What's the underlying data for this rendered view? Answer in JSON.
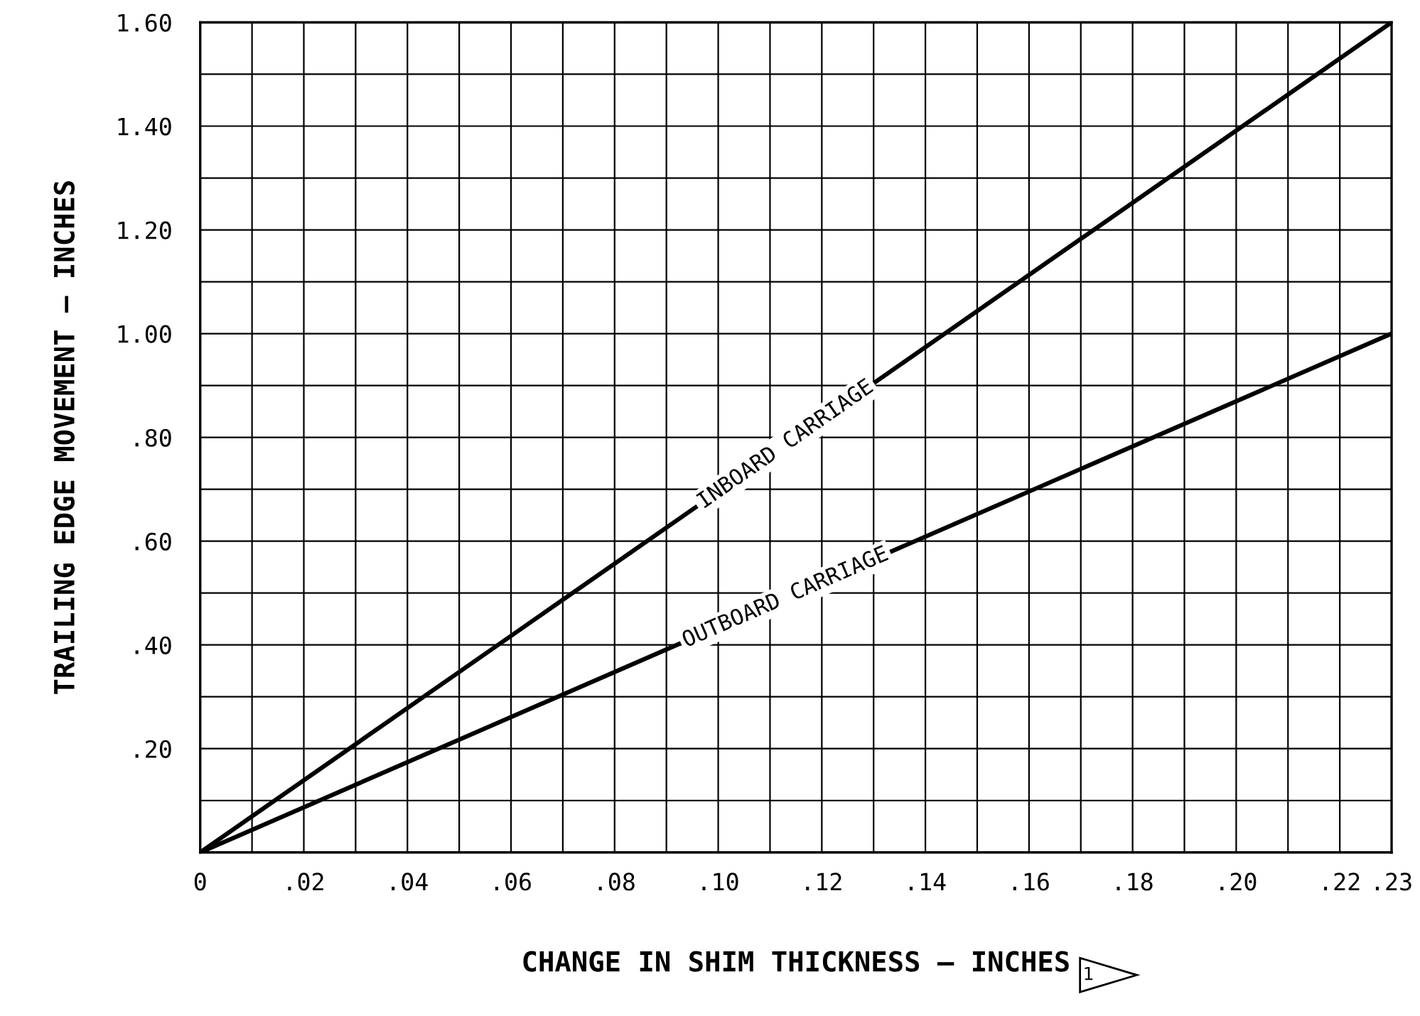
{
  "chart_data": {
    "type": "line",
    "xlabel": "CHANGE IN SHIM THICKNESS – INCHES",
    "ylabel": "TRAILING EDGE MOVEMENT – INCHES",
    "series": [
      {
        "values": [
          0,
          1.6
        ],
        "color": "#000000"
      },
      {
        "values": [
          0,
          1.0
        ],
        "color": "#000000"
      }
    ],
    "x": [
      0,
      0.23
    ],
    "annotations": [
      {
        "text": "INBOARD CARRIAGE",
        "x": 0.113,
        "y": 0.786
      },
      {
        "text": "OUTBOARD CARRIAGE",
        "x": 0.113,
        "y": 0.491
      },
      "1"
    ],
    "xlim": [
      0,
      0.23
    ],
    "ylim": [
      0,
      1.6
    ],
    "xticks": [
      {
        "value": 0,
        "label": "0"
      },
      {
        "value": 0.01,
        "label": null
      },
      {
        "value": 0.02,
        "label": ".02"
      },
      {
        "value": 0.03,
        "label": null
      },
      {
        "value": 0.04,
        "label": ".04"
      },
      {
        "value": 0.05,
        "label": null
      },
      {
        "value": 0.06,
        "label": ".06"
      },
      {
        "value": 0.07,
        "label": null
      },
      {
        "value": 0.08,
        "label": ".08"
      },
      {
        "value": 0.09,
        "label": null
      },
      {
        "value": 0.1,
        "label": ".10"
      },
      {
        "value": 0.11,
        "label": null
      },
      {
        "value": 0.12,
        "label": ".12"
      },
      {
        "value": 0.13,
        "label": null
      },
      {
        "value": 0.14,
        "label": ".14"
      },
      {
        "value": 0.15,
        "label": null
      },
      {
        "value": 0.16,
        "label": ".16"
      },
      {
        "value": 0.17,
        "label": null
      },
      {
        "value": 0.18,
        "label": ".18"
      },
      {
        "value": 0.19,
        "label": null
      },
      {
        "value": 0.2,
        "label": ".20"
      },
      {
        "value": 0.21,
        "label": null
      },
      {
        "value": 0.22,
        "label": ".22"
      },
      {
        "value": 0.23,
        "label": ".23"
      }
    ],
    "yticks": [
      {
        "value": 0,
        "label": null
      },
      {
        "value": 0.1,
        "label": null
      },
      {
        "value": 0.2,
        "label": ".20"
      },
      {
        "value": 0.3,
        "label": null
      },
      {
        "value": 0.4,
        "label": ".40"
      },
      {
        "value": 0.5,
        "label": null
      },
      {
        "value": 0.6,
        "label": ".60"
      },
      {
        "value": 0.7,
        "label": null
      },
      {
        "value": 0.8,
        "label": ".80"
      },
      {
        "value": 0.9,
        "label": null
      },
      {
        "value": 1.0,
        "label": "1.00"
      },
      {
        "value": 1.1,
        "label": null
      },
      {
        "value": 1.2,
        "label": "1.20"
      },
      {
        "value": 1.3,
        "label": null
      },
      {
        "value": 1.4,
        "label": "1.40"
      },
      {
        "value": 1.5,
        "label": null
      },
      {
        "value": 1.6,
        "label": "1.60"
      }
    ],
    "grid": true,
    "marker": "none",
    "line_style": "solid"
  }
}
